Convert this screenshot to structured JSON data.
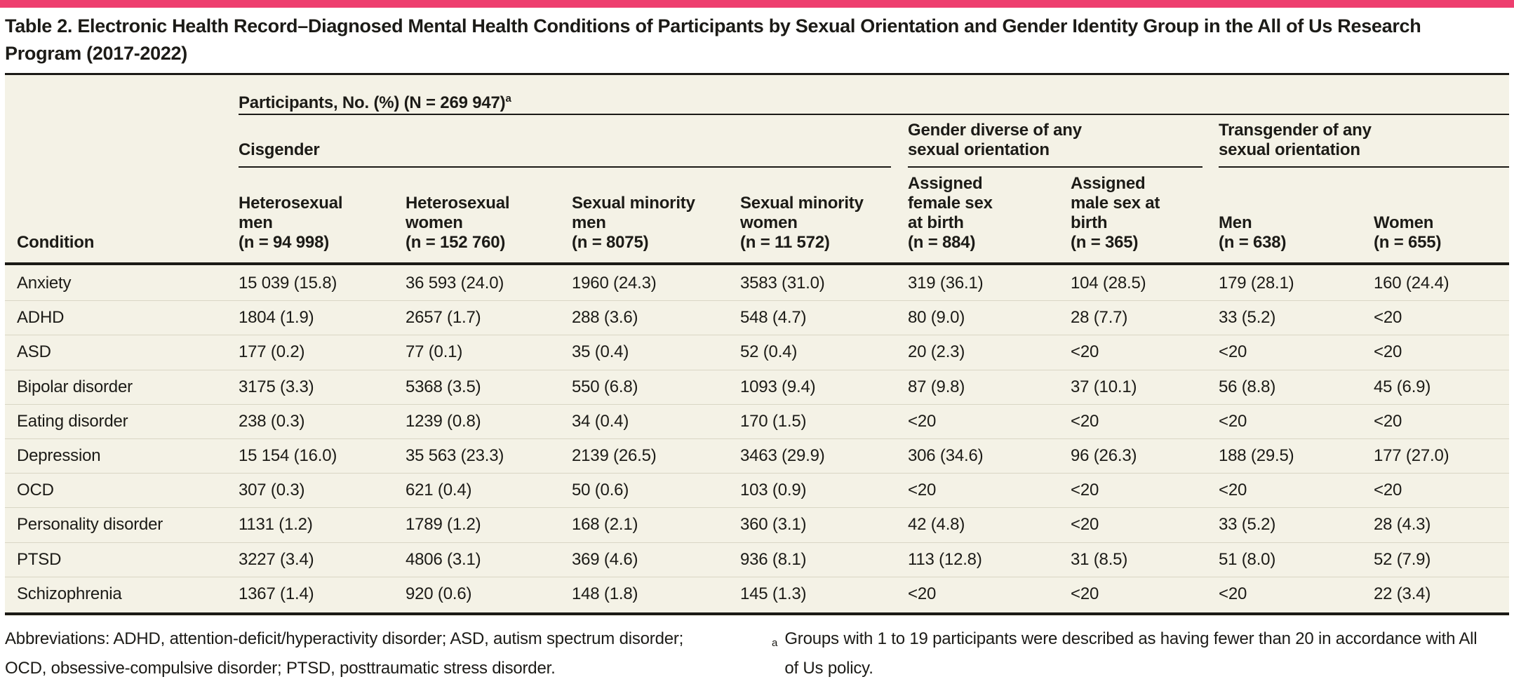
{
  "brand": {
    "accent_bar_color": "#ee3e6e",
    "table_background_color": "#f4f2e6",
    "rule_color": "#1b1a16",
    "row_separator_color": "#d9d6c5"
  },
  "title": "Table 2. Electronic Health Record–Diagnosed Mental Health Conditions of Participants by Sexual Orientation and Gender Identity Group in the All of Us Research Program (2017-2022)",
  "table": {
    "spanner": {
      "label": "Participants, No. (%) (N = 269 947)",
      "marker": "a"
    },
    "groups": [
      {
        "label": "Cisgender"
      },
      {
        "label": "Gender diverse of any sexual orientation"
      },
      {
        "label": "Transgender of any sexual orientation"
      }
    ],
    "columns": [
      {
        "label": "Condition"
      },
      {
        "label": "Heterosexual men",
        "n": "(n = 94 998)"
      },
      {
        "label": "Heterosexual women",
        "n": "(n = 152 760)"
      },
      {
        "label": "Sexual minority men",
        "n": "(n = 8075)"
      },
      {
        "label": "Sexual minority women",
        "n": "(n = 11 572)"
      },
      {
        "label": "Assigned female sex at birth",
        "n": "(n = 884)"
      },
      {
        "label": "Assigned male sex at birth",
        "n": "(n = 365)"
      },
      {
        "label": "Men",
        "n": "(n = 638)"
      },
      {
        "label": "Women",
        "n": "(n = 655)"
      }
    ],
    "rows": [
      {
        "condition": "Anxiety",
        "values": [
          "15 039 (15.8)",
          "36 593 (24.0)",
          "1960 (24.3)",
          "3583 (31.0)",
          "319 (36.1)",
          "104 (28.5)",
          "179 (28.1)",
          "160 (24.4)"
        ]
      },
      {
        "condition": "ADHD",
        "values": [
          "1804 (1.9)",
          "2657 (1.7)",
          "288 (3.6)",
          "548 (4.7)",
          "80 (9.0)",
          "28 (7.7)",
          "33 (5.2)",
          "<20"
        ]
      },
      {
        "condition": "ASD",
        "values": [
          "177 (0.2)",
          "77 (0.1)",
          "35 (0.4)",
          "52 (0.4)",
          "20 (2.3)",
          "<20",
          "<20",
          "<20"
        ]
      },
      {
        "condition": "Bipolar disorder",
        "values": [
          "3175 (3.3)",
          "5368 (3.5)",
          "550 (6.8)",
          "1093 (9.4)",
          "87 (9.8)",
          "37 (10.1)",
          "56 (8.8)",
          "45 (6.9)"
        ]
      },
      {
        "condition": "Eating disorder",
        "values": [
          "238 (0.3)",
          "1239 (0.8)",
          "34 (0.4)",
          "170 (1.5)",
          "<20",
          "<20",
          "<20",
          "<20"
        ]
      },
      {
        "condition": "Depression",
        "values": [
          "15 154 (16.0)",
          "35 563 (23.3)",
          "2139 (26.5)",
          "3463 (29.9)",
          "306 (34.6)",
          "96 (26.3)",
          "188 (29.5)",
          "177 (27.0)"
        ]
      },
      {
        "condition": "OCD",
        "values": [
          "307 (0.3)",
          "621 (0.4)",
          "50 (0.6)",
          "103 (0.9)",
          "<20",
          "<20",
          "<20",
          "<20"
        ]
      },
      {
        "condition": "Personality disorder",
        "values": [
          "1131 (1.2)",
          "1789 (1.2)",
          "168 (2.1)",
          "360 (3.1)",
          "42 (4.8)",
          "<20",
          "33 (5.2)",
          "28 (4.3)"
        ]
      },
      {
        "condition": "PTSD",
        "values": [
          "3227 (3.4)",
          "4806 (3.1)",
          "369 (4.6)",
          "936 (8.1)",
          "113 (12.8)",
          "31 (8.5)",
          "51 (8.0)",
          "52 (7.9)"
        ]
      },
      {
        "condition": "Schizophrenia",
        "values": [
          "1367 (1.4)",
          "920 (0.6)",
          "148 (1.8)",
          "145 (1.3)",
          "<20",
          "<20",
          "<20",
          "22 (3.4)"
        ]
      }
    ]
  },
  "footnotes": {
    "abbreviations": "Abbreviations: ADHD, attention-deficit/hyperactivity disorder; ASD, autism spectrum disorder; OCD, obsessive-compulsive disorder; PTSD, posttraumatic stress disorder.",
    "note_a": {
      "marker": "a",
      "text": "Groups with 1 to 19 participants were described as having fewer than 20 in accordance with All of Us policy."
    }
  }
}
